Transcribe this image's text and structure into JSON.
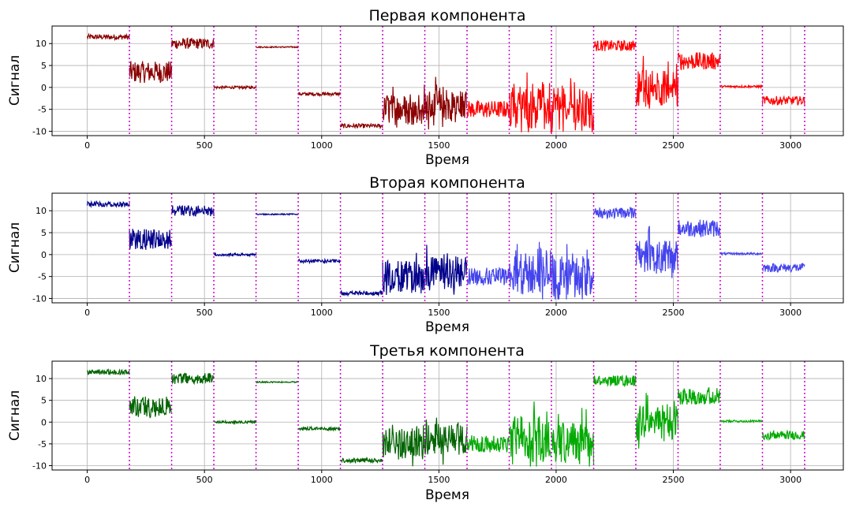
{
  "chart_data": [
    {
      "type": "line",
      "title": "Первая компонента",
      "xlabel": "Время",
      "ylabel": "Сигнал",
      "xlim": [
        -150,
        3225
      ],
      "ylim": [
        -11,
        14
      ],
      "x_ticks": [
        0,
        500,
        1000,
        1500,
        2000,
        2500,
        3000
      ],
      "y_ticks": [
        -10,
        -5,
        0,
        5,
        10
      ],
      "grid": true,
      "segment_boundaries": [
        180,
        360,
        540,
        720,
        900,
        1080,
        1260,
        1440,
        1620,
        1800,
        1980,
        2160,
        2340,
        2520,
        2700,
        2880,
        3060
      ],
      "colors": {
        "cluster_a": "#8b0000",
        "cluster_b": "#ff0000"
      },
      "segments": [
        {
          "x": [
            0,
            180
          ],
          "level": 11.5,
          "noise": 1.2,
          "color": "cluster_a"
        },
        {
          "x": [
            180,
            360
          ],
          "level": 3.5,
          "noise": 5,
          "color": "cluster_a"
        },
        {
          "x": [
            360,
            540
          ],
          "level": 10,
          "noise": 2.5,
          "color": "cluster_a"
        },
        {
          "x": [
            540,
            720
          ],
          "level": 0,
          "noise": 0.6,
          "color": "cluster_a"
        },
        {
          "x": [
            720,
            900
          ],
          "level": 9.2,
          "noise": 0.3,
          "color": "cluster_a"
        },
        {
          "x": [
            900,
            1080
          ],
          "level": -1.5,
          "noise": 0.8,
          "color": "cluster_a"
        },
        {
          "x": [
            1080,
            1260
          ],
          "level": -8.8,
          "noise": 1,
          "color": "cluster_a"
        },
        {
          "x": [
            1260,
            1440
          ],
          "level": -5,
          "noise": 6,
          "color": "cluster_a"
        },
        {
          "x": [
            1440,
            1620
          ],
          "level": -4,
          "noise": 6,
          "color": "cluster_a"
        },
        {
          "x": [
            1620,
            1800
          ],
          "level": -5,
          "noise": 4,
          "color": "cluster_b"
        },
        {
          "x": [
            1800,
            1980
          ],
          "level": -4,
          "noise": 9,
          "color": "cluster_b"
        },
        {
          "x": [
            1980,
            2160
          ],
          "level": -5,
          "noise": 8,
          "color": "cluster_b"
        },
        {
          "x": [
            2160,
            2340
          ],
          "level": 9.5,
          "noise": 2.5,
          "color": "cluster_b"
        },
        {
          "x": [
            2340,
            2520
          ],
          "level": 0,
          "noise": 7,
          "color": "cluster_b"
        },
        {
          "x": [
            2520,
            2700
          ],
          "level": 6,
          "noise": 4,
          "color": "cluster_b"
        },
        {
          "x": [
            2700,
            2880
          ],
          "level": 0.2,
          "noise": 0.5,
          "color": "cluster_b"
        },
        {
          "x": [
            2880,
            3060
          ],
          "level": -3,
          "noise": 2,
          "color": "cluster_b"
        }
      ]
    },
    {
      "type": "line",
      "title": "Вторая компонента",
      "xlabel": "Время",
      "ylabel": "Сигнал",
      "xlim": [
        -150,
        3225
      ],
      "ylim": [
        -11,
        14
      ],
      "x_ticks": [
        0,
        500,
        1000,
        1500,
        2000,
        2500,
        3000
      ],
      "y_ticks": [
        -10,
        -5,
        0,
        5,
        10
      ],
      "grid": true,
      "segment_boundaries": [
        180,
        360,
        540,
        720,
        900,
        1080,
        1260,
        1440,
        1620,
        1800,
        1980,
        2160,
        2340,
        2520,
        2700,
        2880
      ],
      "colors": {
        "cluster_a": "#00008b",
        "cluster_b": "#4444ee"
      },
      "segments": [
        {
          "x": [
            0,
            180
          ],
          "level": 11.5,
          "noise": 1.2,
          "color": "cluster_a"
        },
        {
          "x": [
            180,
            360
          ],
          "level": 3.5,
          "noise": 5,
          "color": "cluster_a"
        },
        {
          "x": [
            360,
            540
          ],
          "level": 10,
          "noise": 2.5,
          "color": "cluster_a"
        },
        {
          "x": [
            540,
            720
          ],
          "level": 0,
          "noise": 0.6,
          "color": "cluster_a"
        },
        {
          "x": [
            720,
            900
          ],
          "level": 9.2,
          "noise": 0.3,
          "color": "cluster_a"
        },
        {
          "x": [
            900,
            1080
          ],
          "level": -1.5,
          "noise": 0.8,
          "color": "cluster_a"
        },
        {
          "x": [
            1080,
            1260
          ],
          "level": -8.8,
          "noise": 1,
          "color": "cluster_a"
        },
        {
          "x": [
            1260,
            1440
          ],
          "level": -5,
          "noise": 6,
          "color": "cluster_a"
        },
        {
          "x": [
            1440,
            1620
          ],
          "level": -4,
          "noise": 6,
          "color": "cluster_a"
        },
        {
          "x": [
            1620,
            1800
          ],
          "level": -5,
          "noise": 4,
          "color": "cluster_b"
        },
        {
          "x": [
            1800,
            1980
          ],
          "level": -4,
          "noise": 9,
          "color": "cluster_b"
        },
        {
          "x": [
            1980,
            2160
          ],
          "level": -5,
          "noise": 8,
          "color": "cluster_b"
        },
        {
          "x": [
            2160,
            2340
          ],
          "level": 9.5,
          "noise": 2.5,
          "color": "cluster_b"
        },
        {
          "x": [
            2340,
            2520
          ],
          "level": 0,
          "noise": 7,
          "color": "cluster_b"
        },
        {
          "x": [
            2520,
            2700
          ],
          "level": 6,
          "noise": 4,
          "color": "cluster_b"
        },
        {
          "x": [
            2700,
            2880
          ],
          "level": 0.2,
          "noise": 0.5,
          "color": "cluster_b"
        },
        {
          "x": [
            2880,
            3060
          ],
          "level": -3,
          "noise": 2,
          "color": "cluster_b"
        }
      ]
    },
    {
      "type": "line",
      "title": "Третья компонента",
      "xlabel": "Время",
      "ylabel": "Сигнал",
      "xlim": [
        -150,
        3225
      ],
      "ylim": [
        -11,
        14
      ],
      "x_ticks": [
        0,
        500,
        1000,
        1500,
        2000,
        2500,
        3000
      ],
      "y_ticks": [
        -10,
        -5,
        0,
        5,
        10
      ],
      "grid": true,
      "segment_boundaries": [
        180,
        360,
        540,
        720,
        900,
        1080,
        1260,
        1440,
        1620,
        1800,
        1980,
        2160,
        2340,
        2520,
        2700,
        2880,
        3060
      ],
      "colors": {
        "cluster_a": "#006400",
        "cluster_b": "#00aa00"
      },
      "segments": [
        {
          "x": [
            0,
            180
          ],
          "level": 11.5,
          "noise": 1.2,
          "color": "cluster_a"
        },
        {
          "x": [
            180,
            360
          ],
          "level": 3.5,
          "noise": 5,
          "color": "cluster_a"
        },
        {
          "x": [
            360,
            540
          ],
          "level": 10,
          "noise": 2.5,
          "color": "cluster_a"
        },
        {
          "x": [
            540,
            720
          ],
          "level": 0,
          "noise": 0.6,
          "color": "cluster_a"
        },
        {
          "x": [
            720,
            900
          ],
          "level": 9.2,
          "noise": 0.3,
          "color": "cluster_a"
        },
        {
          "x": [
            900,
            1080
          ],
          "level": -1.5,
          "noise": 0.8,
          "color": "cluster_a"
        },
        {
          "x": [
            1080,
            1260
          ],
          "level": -8.8,
          "noise": 1,
          "color": "cluster_a"
        },
        {
          "x": [
            1260,
            1440
          ],
          "level": -5,
          "noise": 6,
          "color": "cluster_a"
        },
        {
          "x": [
            1440,
            1620
          ],
          "level": -4,
          "noise": 6,
          "color": "cluster_a"
        },
        {
          "x": [
            1620,
            1800
          ],
          "level": -5,
          "noise": 4,
          "color": "cluster_b"
        },
        {
          "x": [
            1800,
            1980
          ],
          "level": -4,
          "noise": 9,
          "color": "cluster_b"
        },
        {
          "x": [
            1980,
            2160
          ],
          "level": -5,
          "noise": 8,
          "color": "cluster_b"
        },
        {
          "x": [
            2160,
            2340
          ],
          "level": 9.5,
          "noise": 2.5,
          "color": "cluster_b"
        },
        {
          "x": [
            2340,
            2520
          ],
          "level": 0,
          "noise": 7,
          "color": "cluster_b"
        },
        {
          "x": [
            2520,
            2700
          ],
          "level": 6,
          "noise": 4,
          "color": "cluster_b"
        },
        {
          "x": [
            2700,
            2880
          ],
          "level": 0.2,
          "noise": 0.5,
          "color": "cluster_b"
        },
        {
          "x": [
            2880,
            3060
          ],
          "level": -3,
          "noise": 2,
          "color": "cluster_b"
        }
      ]
    }
  ]
}
